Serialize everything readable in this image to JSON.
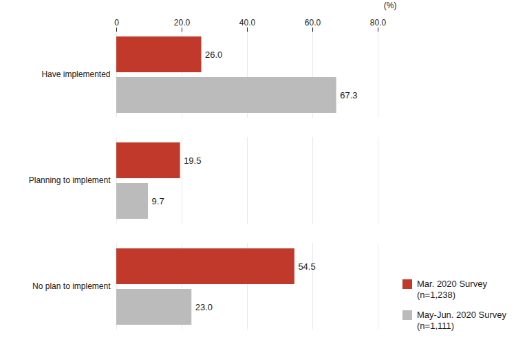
{
  "chart_data": {
    "type": "bar",
    "orientation": "horizontal",
    "categories": [
      "Have implemented",
      "Planning to implement",
      "No plan to implement"
    ],
    "series": [
      {
        "name": "Mar. 2020 Survey\n(n=1,238)",
        "color": "#C0392B",
        "values": [
          26.0,
          19.5,
          54.5
        ],
        "value_labels": [
          "26.0",
          "19.5",
          "54.5"
        ]
      },
      {
        "name": "May-Jun. 2020 Survey\n(n=1,111)",
        "color": "#BBBBBB",
        "values": [
          67.3,
          9.7,
          23.0
        ],
        "value_labels": [
          "67.3",
          "9.7",
          "23.0"
        ]
      }
    ],
    "xlim": [
      0,
      80
    ],
    "xticks": [
      0,
      {
        "value": 20,
        "label": "20.0"
      },
      {
        "value": 40,
        "label": "40.0"
      },
      {
        "value": 60,
        "label": "60.0"
      },
      {
        "value": 80,
        "label": "80.0"
      }
    ],
    "annotation": "(%)",
    "grid": true,
    "data_labels": true,
    "legend": "lower right"
  }
}
